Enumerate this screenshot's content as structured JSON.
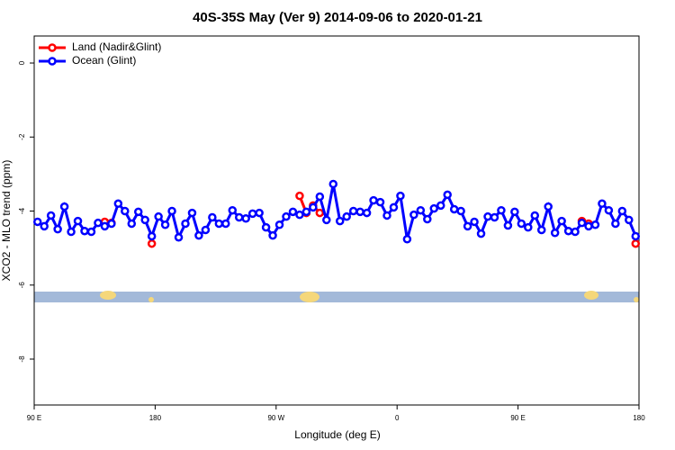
{
  "chart_data": {
    "type": "line",
    "title": "40S-35S May (Ver 9)   2014-09-06 to 2020-01-21",
    "x_label": "Longitude (deg E)",
    "y_label": "XCO2 - MLO trend (ppm)",
    "x": [
      92.5,
      97.5,
      102.5,
      107.5,
      112.5,
      117.5,
      122.5,
      127.5,
      132.5,
      137.5,
      142.5,
      147.5,
      152.5,
      157.5,
      162.5,
      167.5,
      172.5,
      177.5,
      182.5,
      187.5,
      192.5,
      197.5,
      202.5,
      207.5,
      212.5,
      217.5,
      222.5,
      227.5,
      232.5,
      237.5,
      242.5,
      247.5,
      252.5,
      257.5,
      262.5,
      267.5,
      272.5,
      277.5,
      282.5,
      287.5,
      292.5,
      297.5,
      302.5,
      307.5,
      312.5,
      317.5,
      322.5,
      327.5,
      332.5,
      337.5,
      342.5,
      347.5,
      352.5,
      357.5,
      362.5,
      367.5,
      372.5,
      377.5,
      382.5,
      387.5,
      392.5,
      397.5,
      402.5,
      407.5,
      412.5,
      417.5,
      422.5,
      427.5,
      432.5,
      437.5,
      442.5,
      447.5,
      452.5,
      457.5,
      462.5,
      467.5,
      472.5,
      477.5,
      482.5,
      487.5,
      492.5,
      497.5,
      502.5,
      507.5,
      512.5,
      517.5,
      522.5,
      527.5,
      532.5,
      537.5
    ],
    "series": [
      {
        "name": "Land (Nadir&Glint)",
        "color": "#ff0000",
        "values": [
          null,
          null,
          null,
          null,
          null,
          null,
          null,
          null,
          null,
          null,
          -4.29,
          -4.32,
          null,
          null,
          null,
          null,
          null,
          -4.88,
          null,
          null,
          null,
          null,
          null,
          null,
          null,
          null,
          null,
          null,
          null,
          null,
          null,
          null,
          null,
          null,
          null,
          null,
          null,
          null,
          null,
          -3.59,
          -4.05,
          -3.85,
          -4.05,
          null,
          null,
          null,
          null,
          null,
          null,
          null,
          null,
          null,
          null,
          null,
          null,
          null,
          null,
          null,
          null,
          null,
          null,
          null,
          null,
          null,
          null,
          null,
          null,
          null,
          null,
          null,
          null,
          null,
          null,
          null,
          null,
          null,
          null,
          null,
          null,
          null,
          null,
          -4.27,
          -4.34,
          null,
          null,
          null,
          null,
          null,
          null,
          -4.88
        ]
      },
      {
        "name": "Ocean (Glint)",
        "color": "#0000ff",
        "values": [
          -4.29,
          -4.41,
          -4.12,
          -4.49,
          -3.88,
          -4.56,
          -4.27,
          -4.54,
          -4.56,
          -4.32,
          -4.41,
          -4.34,
          -3.8,
          -4.0,
          -4.34,
          -4.02,
          -4.24,
          -4.68,
          -4.15,
          -4.37,
          -4.0,
          -4.71,
          -4.34,
          -4.05,
          -4.66,
          -4.51,
          -4.17,
          -4.34,
          -4.34,
          -3.98,
          -4.17,
          -4.2,
          -4.07,
          -4.05,
          -4.44,
          -4.66,
          -4.37,
          -4.15,
          -4.02,
          -4.1,
          -4.02,
          -3.9,
          -3.61,
          -4.24,
          -3.27,
          -4.27,
          -4.15,
          -4.0,
          -4.02,
          -4.05,
          -3.71,
          -3.76,
          -4.12,
          -3.9,
          -3.59,
          -4.76,
          -4.1,
          -3.98,
          -4.22,
          -3.93,
          -3.85,
          -3.56,
          -3.95,
          -4.0,
          -4.41,
          -4.29,
          -4.61,
          -4.15,
          -4.17,
          -3.98,
          -4.39,
          -4.02,
          -4.34,
          -4.44,
          -4.12,
          -4.51,
          -3.88,
          -4.59,
          -4.27,
          -4.54,
          -4.56,
          -4.32,
          -4.41,
          -4.37,
          -3.8,
          -3.98,
          -4.34,
          -4.0,
          -4.24,
          -4.68
        ]
      }
    ],
    "xlim": [
      90,
      540
    ],
    "xticks": [
      {
        "value": 90,
        "label": "90 E"
      },
      180,
      {
        "value": 270,
        "label": "90 W"
      },
      {
        "value": 360,
        "label": "0"
      },
      {
        "value": 450,
        "label": "90 E"
      },
      {
        "value": 540,
        "label": "180"
      }
    ],
    "ylim": [
      -9.24,
      0.73
    ],
    "yticks": [
      0,
      -2,
      -4,
      -6,
      -8
    ],
    "legend": "top-left"
  }
}
